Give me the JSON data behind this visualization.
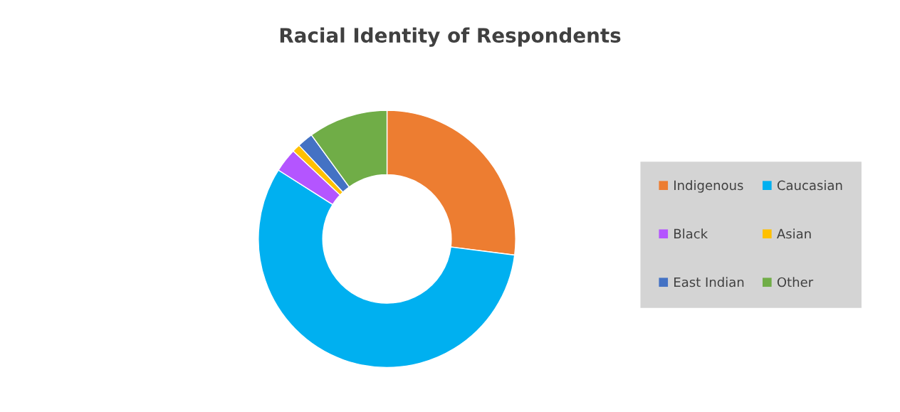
{
  "chart_data": {
    "type": "donut",
    "title": "Racial Identity of Respondents",
    "categories": [
      "Indigenous",
      "Caucasian",
      "Black",
      "Asian",
      "East Indian",
      "Other"
    ],
    "values": [
      27,
      57,
      3,
      1,
      2,
      10
    ],
    "colors": [
      "#ed7d31",
      "#00b0f0",
      "#b455ff",
      "#ffc000",
      "#4472c4",
      "#70ad47"
    ],
    "legend": "right"
  }
}
